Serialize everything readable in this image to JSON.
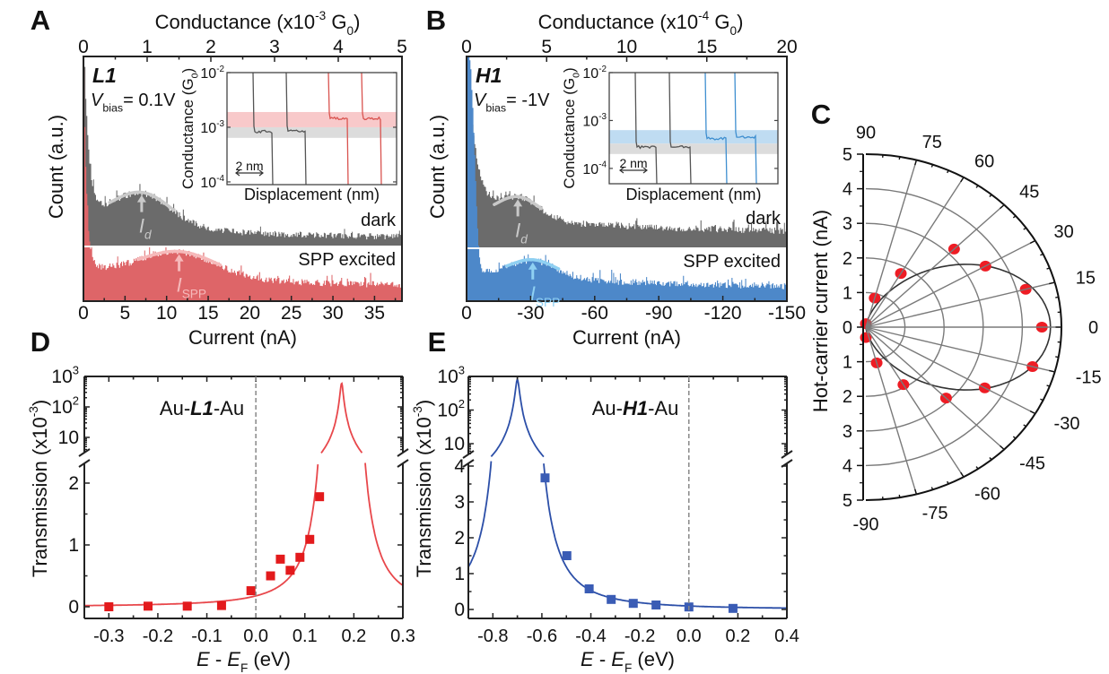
{
  "chart_data": [
    {
      "panel": "A",
      "type": "histogram",
      "title_parts": [
        "Conductance (x10",
        "-3",
        " G",
        "0",
        ")"
      ],
      "top_ticks": [
        "0",
        "1",
        "2",
        "3",
        "4",
        "5"
      ],
      "top_lim": [
        0,
        5
      ],
      "xlabel": "Current (nA)",
      "xticks": [
        "0",
        "5",
        "10",
        "15",
        "20",
        "25",
        "30",
        "35"
      ],
      "xlim": [
        0,
        38.3
      ],
      "ylabel": "Count (a.u.)",
      "molecule": "L1",
      "bias_parts": [
        "V",
        "bias",
        "= 0.1V"
      ],
      "series": [
        {
          "name": "dark",
          "label": "dark",
          "color": "#6b6b6b",
          "fit_color": "#c9c9c9",
          "peak_label": [
            "I",
            "d"
          ],
          "model": {
            "baseline": 2.5,
            "tail_amp": 9,
            "tail_decay_nA": 14,
            "spike_amp": 80,
            "spike_width_nA": 0.55,
            "spike_power": 1,
            "peak_nA": 7,
            "peak_width_nA": 3.5,
            "peak_amp": 13
          }
        },
        {
          "name": "SPP excited",
          "label": "SPP excited",
          "color": "#de6568",
          "fit_color": "#f6b9ba",
          "peak_label": [
            "I",
            "SPP"
          ],
          "model": {
            "baseline": 5,
            "tail_amp": 8,
            "tail_decay_nA": 20,
            "spike_amp": 95,
            "spike_width_nA": 0.35,
            "spike_power": 1,
            "peak_nA": 11.5,
            "peak_width_nA": 4.5,
            "peak_amp": 10
          }
        }
      ],
      "inset": {
        "ylabel_parts": [
          "Conductance (G",
          "0",
          ")"
        ],
        "yticks": [
          [
            "10",
            "-2"
          ],
          [
            "10",
            "-3"
          ],
          [
            "10",
            "-4"
          ]
        ],
        "ylim_log10": [
          -4.05,
          -2
        ],
        "xlabel": "Displacement (nm)",
        "scalebar": "2 nm",
        "bands": [
          {
            "color": "#f8c9ca",
            "range_G": [
              0.001,
              0.0019
            ]
          },
          {
            "color": "#dcdcdc",
            "range_G": [
              0.00064,
              0.001
            ]
          }
        ],
        "traces": [
          {
            "color": "#555555",
            "plateau_G": 0.00083
          },
          {
            "color": "#555555",
            "plateau_G": 0.00085
          },
          {
            "color": "#d9534f",
            "plateau_G": 0.00145
          },
          {
            "color": "#d9534f",
            "plateau_G": 0.00145
          }
        ]
      }
    },
    {
      "panel": "B",
      "type": "histogram",
      "title_parts": [
        "Conductance (x10",
        "-4",
        " G",
        "0",
        ")"
      ],
      "top_ticks": [
        "0",
        "5",
        "10",
        "15",
        "20"
      ],
      "top_lim": [
        0,
        20
      ],
      "xlabel": "Current (nA)",
      "xticks": [
        "0",
        "-30",
        "-60",
        "-90",
        "-120",
        "-150"
      ],
      "xlim": [
        0,
        -150
      ],
      "ylabel": "Count (a.u.)",
      "molecule": "H1",
      "bias_parts": [
        "V",
        "bias",
        "= -1V"
      ],
      "series": [
        {
          "name": "dark",
          "label": "dark",
          "color": "#6b6b6b",
          "fit_color": "#c9c9c9",
          "peak_label": [
            "I",
            "d"
          ],
          "model": {
            "baseline": 5,
            "tail_amp": 8,
            "tail_decay_nA": 80,
            "spike_amp": 75,
            "spike_width_nA": 4,
            "spike_power": 1,
            "peak_nA": 24,
            "peak_width_nA": 10,
            "peak_amp": 9
          }
        },
        {
          "name": "SPP excited",
          "label": "SPP excited",
          "color": "#4d88c9",
          "fit_color": "#8fd0f2",
          "peak_label": [
            "I",
            "SPP"
          ],
          "model": {
            "baseline": 4,
            "tail_amp": 7,
            "tail_decay_nA": 100,
            "spike_amp": 90,
            "spike_width_nA": 4.5,
            "spike_power": 3,
            "peak_nA": 31,
            "peak_width_nA": 11,
            "peak_amp": 7
          }
        }
      ],
      "inset": {
        "ylabel_parts": [
          "Conductance (G",
          "0",
          ")"
        ],
        "yticks": [
          [
            "10",
            "-2"
          ],
          [
            "10",
            "-3"
          ],
          [
            "10",
            "-4"
          ]
        ],
        "ylim_log10": [
          -4.32,
          -2
        ],
        "xlabel": "Displacement (nm)",
        "scalebar": "2 nm",
        "bands": [
          {
            "color": "#bfdcf2",
            "range_G": [
              0.00033,
              0.00063
            ]
          },
          {
            "color": "#dcdcdc",
            "range_G": [
              0.0002,
              0.00033
            ]
          }
        ],
        "traces": [
          {
            "color": "#555555",
            "plateau_G": 0.00028
          },
          {
            "color": "#555555",
            "plateau_G": 0.00028
          },
          {
            "color": "#3f8fd0",
            "plateau_G": 0.00042
          },
          {
            "color": "#3f8fd0",
            "plateau_G": 0.00045
          }
        ]
      }
    },
    {
      "panel": "C",
      "type": "scatter",
      "coordinate_system": "polar",
      "ylabel": "Hot-carrier current (nA)",
      "radial_lim": [
        0,
        5
      ],
      "radial_tick_labels": [
        "5",
        "4",
        "3",
        "2",
        "1",
        "0",
        "1",
        "2",
        "3",
        "4",
        "5"
      ],
      "angle_labels": [
        "90",
        "75",
        "60",
        "45",
        "30",
        "15",
        "0",
        "-15",
        "-30",
        "-45",
        "-60",
        "-75",
        "-90"
      ],
      "points": {
        "angle_deg": [
          90,
          75,
          60,
          45,
          30,
          15,
          0,
          -15,
          -30,
          -45,
          -60,
          -75,
          -90
        ],
        "current_nA": [
          0.1,
          0.87,
          1.79,
          3.19,
          3.53,
          4.23,
          4.5,
          4.41,
          3.51,
          2.9,
          1.92,
          1.07,
          0.3
        ]
      },
      "fit": {
        "form": "A*cos^2(theta)",
        "A_nA": 4.72
      },
      "marker_color": "#ee1c24"
    },
    {
      "panel": "D",
      "type": "scatter",
      "annotation_parts": [
        "Au-",
        "L1",
        "-Au"
      ],
      "xlabel_parts": [
        "E",
        " - ",
        "E",
        "F",
        " (eV)"
      ],
      "ylabel_parts": [
        "Transmission (x10",
        "-3",
        ")"
      ],
      "xticks": [
        "-0.3",
        "-0.2",
        "-0.1",
        "0.0",
        "0.1",
        "0.2",
        "0.3"
      ],
      "xlim": [
        -0.35,
        0.3
      ],
      "yticks_lower": [
        "0",
        "1",
        "2"
      ],
      "yticks_upper": [
        [
          "10",
          ""
        ],
        [
          "10",
          "2"
        ],
        [
          "10",
          "3"
        ]
      ],
      "x": [
        -0.3,
        -0.22,
        -0.14,
        -0.07,
        -0.01,
        0.03,
        0.05,
        0.07,
        0.09,
        0.11,
        0.13
      ],
      "y": [
        0.0,
        0.01,
        0.01,
        0.02,
        0.26,
        0.5,
        0.77,
        0.59,
        0.8,
        1.09,
        1.78
      ],
      "fit": {
        "form": "lorentzian",
        "E0_eV": 0.175,
        "peak": 600,
        "gamma_eV": 0.003
      },
      "color": "#e8474b",
      "marker_color": "#e31a1c"
    },
    {
      "panel": "E",
      "type": "scatter",
      "annotation_parts": [
        "Au-",
        "H1",
        "-Au"
      ],
      "xlabel_parts": [
        "E",
        " - ",
        "E",
        "F",
        " (eV)"
      ],
      "ylabel_parts": [
        "Transmission (x10",
        "-3",
        ")"
      ],
      "xticks": [
        "-0.8",
        "-0.6",
        "-0.4",
        "-0.2",
        "0.0",
        "0.2",
        "0.4"
      ],
      "xlim": [
        -0.9,
        0.4
      ],
      "yticks_lower": [
        "0",
        "1",
        "2",
        "3",
        "4"
      ],
      "yticks_upper": [
        [
          "10",
          ""
        ],
        [
          "10",
          "2"
        ],
        [
          "10",
          "3"
        ]
      ],
      "x": [
        -0.587,
        -0.498,
        -0.407,
        -0.317,
        -0.227,
        -0.134,
        0.0,
        0.18
      ],
      "y": [
        3.67,
        1.5,
        0.575,
        0.28,
        0.17,
        0.125,
        0.07,
        0.03
      ],
      "fit": {
        "form": "lorentzian",
        "E0_eV": -0.7,
        "peak": 800,
        "gamma_eV": 0.0077
      },
      "color": "#2c4fa8",
      "marker_color": "#3a5cb5"
    }
  ]
}
